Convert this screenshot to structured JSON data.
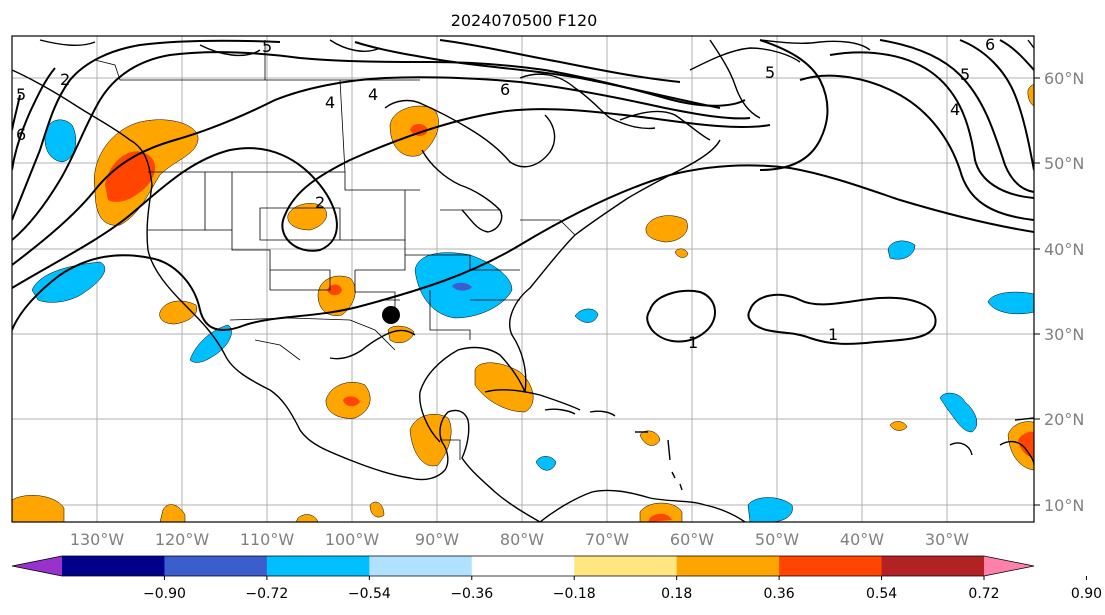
{
  "title": "2024070500 F120",
  "lon_labels": [
    "130°W",
    "120°W",
    "110°W",
    "100°W",
    "90°W",
    "80°W",
    "70°W",
    "60°W",
    "50°W",
    "40°W",
    "30°W"
  ],
  "lat_labels": [
    "60°N",
    "50°N",
    "40°N",
    "30°N",
    "20°N",
    "10°N"
  ],
  "colorbar": {
    "ticks": [
      "−0.90",
      "−0.72",
      "−0.54",
      "−0.36",
      "−0.18",
      "0.18",
      "0.36",
      "0.54",
      "0.72",
      "0.90"
    ],
    "colors": [
      "#9932cc",
      "#00008b",
      "#3a5fcd",
      "#00bfff",
      "#b0e2ff",
      "#ffffff",
      "#ffe680",
      "#ffa500",
      "#ff4500",
      "#b22222",
      "#ff80aa"
    ]
  },
  "contour_labels": [
    "2",
    "4",
    "6",
    "6",
    "5",
    "5",
    "4",
    "4",
    "5",
    "6",
    "1",
    "1",
    "2",
    "5"
  ],
  "marker": "black-dot"
}
